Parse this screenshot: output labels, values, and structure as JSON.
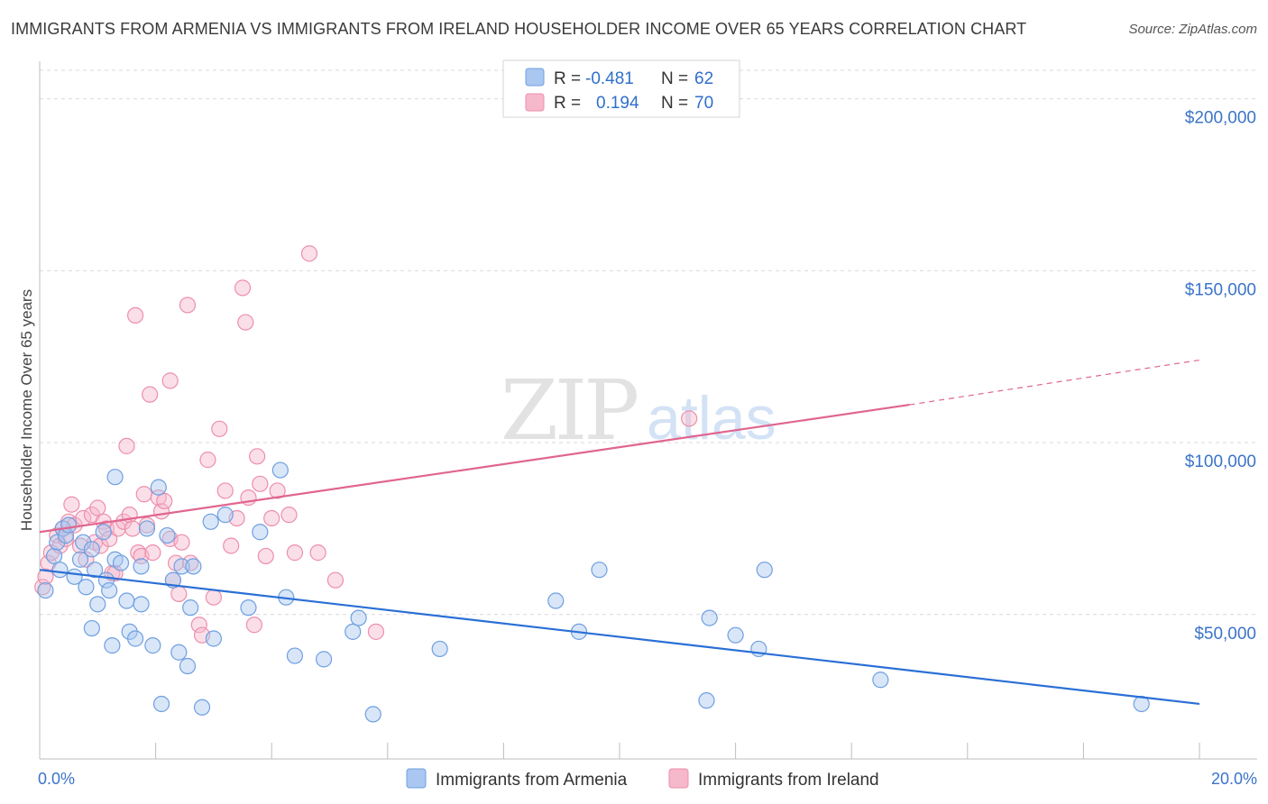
{
  "title": "IMMIGRANTS FROM ARMENIA VS IMMIGRANTS FROM IRELAND HOUSEHOLDER INCOME OVER 65 YEARS CORRELATION CHART",
  "source": "Source: ZipAtlas.com",
  "watermark": {
    "zip": "ZIP",
    "atlas": "atlas"
  },
  "colors": {
    "armenia_fill": "#a9c7f0",
    "armenia_stroke": "#6f9fe0",
    "armenia_line": "#2a6fd6",
    "ireland_fill": "#f6b8cb",
    "ireland_stroke": "#ec8fac",
    "ireland_line": "#e0658f",
    "axis_label": "#3b74c9",
    "grid": "#d9d9d9"
  },
  "legend_box": {
    "rows": [
      {
        "r_label": "R =",
        "r_value": "-0.481",
        "n_label": "N =",
        "n_value": "62"
      },
      {
        "r_label": "R =",
        "r_value": "0.194",
        "n_label": "N =",
        "n_value": "70"
      }
    ]
  },
  "chart_data": {
    "type": "scatter",
    "title": "IMMIGRANTS FROM ARMENIA VS IMMIGRANTS FROM IRELAND HOUSEHOLDER INCOME OVER 65 YEARS CORRELATION CHART",
    "xlabel": "",
    "ylabel": "Householder Income Over 65 years",
    "xlim": [
      0,
      20
    ],
    "ylim": [
      8000,
      213000
    ],
    "x_tick_labels": [
      {
        "value": 0,
        "label": "0.0%"
      },
      {
        "value": 20,
        "label": "20.0%"
      }
    ],
    "y_ticks": [
      {
        "value": 50000,
        "label": "$50,000"
      },
      {
        "value": 100000,
        "label": "$100,000"
      },
      {
        "value": 150000,
        "label": "$150,000"
      },
      {
        "value": 200000,
        "label": "$200,000"
      }
    ],
    "grid": true,
    "legend_position": "bottom",
    "series": [
      {
        "name": "Immigrants from Armenia",
        "color": "#a9c7f0",
        "r": -0.481,
        "n": 62,
        "trend": {
          "x0": 0.0,
          "y0": 63000,
          "x1": 20.0,
          "y1": 24000
        },
        "points": [
          [
            0.1,
            57000
          ],
          [
            0.25,
            67000
          ],
          [
            0.3,
            71000
          ],
          [
            0.35,
            63000
          ],
          [
            0.4,
            75000
          ],
          [
            0.45,
            73000
          ],
          [
            0.5,
            76000
          ],
          [
            0.6,
            61000
          ],
          [
            0.7,
            66000
          ],
          [
            0.75,
            71000
          ],
          [
            0.8,
            58000
          ],
          [
            0.9,
            46000
          ],
          [
            0.9,
            69000
          ],
          [
            0.95,
            63000
          ],
          [
            1.0,
            53000
          ],
          [
            1.1,
            74000
          ],
          [
            1.15,
            60000
          ],
          [
            1.2,
            57000
          ],
          [
            1.25,
            41000
          ],
          [
            1.3,
            66000
          ],
          [
            1.3,
            90000
          ],
          [
            1.4,
            65000
          ],
          [
            1.5,
            54000
          ],
          [
            1.55,
            45000
          ],
          [
            1.65,
            43000
          ],
          [
            1.75,
            64000
          ],
          [
            1.75,
            53000
          ],
          [
            1.85,
            75000
          ],
          [
            1.95,
            41000
          ],
          [
            2.05,
            87000
          ],
          [
            2.1,
            24000
          ],
          [
            2.2,
            73000
          ],
          [
            2.3,
            60000
          ],
          [
            2.4,
            39000
          ],
          [
            2.45,
            64000
          ],
          [
            2.55,
            35000
          ],
          [
            2.6,
            52000
          ],
          [
            2.65,
            64000
          ],
          [
            2.8,
            23000
          ],
          [
            2.95,
            77000
          ],
          [
            3.0,
            43000
          ],
          [
            3.2,
            79000
          ],
          [
            3.6,
            52000
          ],
          [
            3.8,
            74000
          ],
          [
            4.15,
            92000
          ],
          [
            4.25,
            55000
          ],
          [
            4.4,
            38000
          ],
          [
            4.9,
            37000
          ],
          [
            5.4,
            45000
          ],
          [
            5.5,
            49000
          ],
          [
            5.75,
            21000
          ],
          [
            6.9,
            40000
          ],
          [
            8.9,
            54000
          ],
          [
            9.3,
            45000
          ],
          [
            9.65,
            63000
          ],
          [
            11.5,
            25000
          ],
          [
            11.55,
            49000
          ],
          [
            12.0,
            44000
          ],
          [
            12.4,
            40000
          ],
          [
            12.5,
            63000
          ],
          [
            14.5,
            31000
          ],
          [
            19.0,
            24000
          ]
        ]
      },
      {
        "name": "Immigrants from Ireland",
        "color": "#f6b8cb",
        "r": 0.194,
        "n": 70,
        "trend": {
          "x0": 0.0,
          "y0": 74000,
          "x1": 15.0,
          "y1": 111000,
          "x1_dashed": 20.0,
          "y1_dashed": 124000
        },
        "points": [
          [
            0.05,
            58000
          ],
          [
            0.15,
            65000
          ],
          [
            0.2,
            68000
          ],
          [
            0.3,
            73000
          ],
          [
            0.35,
            70000
          ],
          [
            0.4,
            75000
          ],
          [
            0.45,
            72000
          ],
          [
            0.5,
            77000
          ],
          [
            0.55,
            82000
          ],
          [
            0.6,
            76000
          ],
          [
            0.7,
            70000
          ],
          [
            0.75,
            78000
          ],
          [
            0.8,
            66000
          ],
          [
            0.9,
            79000
          ],
          [
            0.95,
            71000
          ],
          [
            1.0,
            81000
          ],
          [
            1.05,
            70000
          ],
          [
            1.1,
            77000
          ],
          [
            1.15,
            75000
          ],
          [
            1.2,
            72000
          ],
          [
            1.25,
            62000
          ],
          [
            1.3,
            62000
          ],
          [
            1.35,
            75000
          ],
          [
            1.45,
            77000
          ],
          [
            1.5,
            99000
          ],
          [
            1.55,
            79000
          ],
          [
            1.6,
            75000
          ],
          [
            1.65,
            137000
          ],
          [
            1.7,
            68000
          ],
          [
            1.75,
            67000
          ],
          [
            1.8,
            85000
          ],
          [
            1.85,
            76000
          ],
          [
            1.9,
            114000
          ],
          [
            1.95,
            68000
          ],
          [
            2.05,
            84000
          ],
          [
            2.1,
            80000
          ],
          [
            2.15,
            83000
          ],
          [
            2.25,
            118000
          ],
          [
            2.25,
            72000
          ],
          [
            2.3,
            60000
          ],
          [
            2.35,
            65000
          ],
          [
            2.4,
            56000
          ],
          [
            2.45,
            71000
          ],
          [
            2.55,
            140000
          ],
          [
            2.6,
            65000
          ],
          [
            2.75,
            47000
          ],
          [
            2.8,
            44000
          ],
          [
            2.9,
            95000
          ],
          [
            3.0,
            55000
          ],
          [
            3.1,
            104000
          ],
          [
            3.2,
            86000
          ],
          [
            3.3,
            70000
          ],
          [
            3.4,
            78000
          ],
          [
            3.5,
            145000
          ],
          [
            3.55,
            135000
          ],
          [
            3.6,
            84000
          ],
          [
            3.7,
            47000
          ],
          [
            3.75,
            96000
          ],
          [
            3.8,
            88000
          ],
          [
            3.9,
            67000
          ],
          [
            4.0,
            78000
          ],
          [
            4.1,
            86000
          ],
          [
            4.3,
            79000
          ],
          [
            4.4,
            68000
          ],
          [
            4.65,
            155000
          ],
          [
            4.8,
            68000
          ],
          [
            5.1,
            60000
          ],
          [
            5.8,
            45000
          ],
          [
            11.2,
            107000
          ],
          [
            0.1,
            61000
          ]
        ]
      }
    ]
  }
}
